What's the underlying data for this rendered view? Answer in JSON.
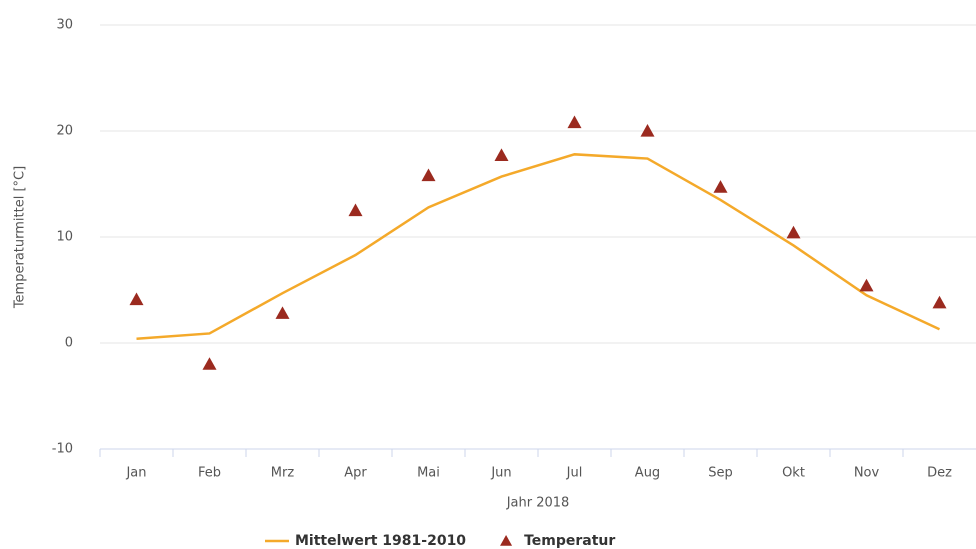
{
  "chart_data": {
    "type": "line",
    "x_label": "Jahr 2018",
    "y_label": "Temperaturmittel [°C]",
    "categories": [
      "Jan",
      "Feb",
      "Mrz",
      "Apr",
      "Mai",
      "Jun",
      "Jul",
      "Aug",
      "Sep",
      "Okt",
      "Nov",
      "Dez"
    ],
    "series": [
      {
        "name": "Mittelwert 1981-2010",
        "type": "line",
        "color": "#f4a92a",
        "values": [
          0.4,
          0.9,
          4.7,
          8.3,
          12.8,
          15.7,
          17.8,
          17.4,
          13.5,
          9.2,
          4.5,
          1.3
        ]
      },
      {
        "name": "Temperatur",
        "type": "scatter",
        "color": "#9b2a1f",
        "values": [
          4.1,
          -2.0,
          2.8,
          12.5,
          15.8,
          17.7,
          20.8,
          20.0,
          14.7,
          10.4,
          5.4,
          3.8
        ]
      }
    ],
    "ylim": [
      -10,
      30
    ],
    "yticks": [
      -10,
      0,
      10,
      20,
      30
    ],
    "grid": true,
    "legend": "bottom"
  }
}
